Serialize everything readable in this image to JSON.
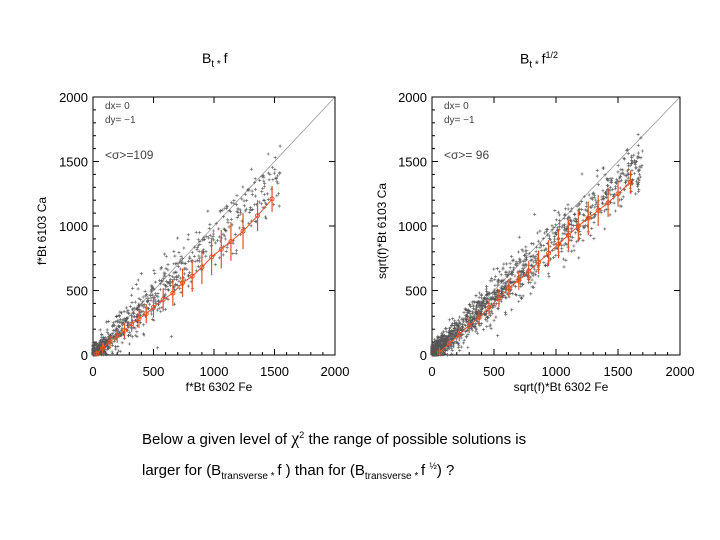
{
  "titles": {
    "left": {
      "base": "B",
      "sub": "t * ",
      "rest": "f",
      "sup": ""
    },
    "right": {
      "base": "B",
      "sub": "t * ",
      "rest": "f",
      "sup": "1/2"
    }
  },
  "caption": {
    "line1_pre": "Below a given level of ",
    "chi": "χ",
    "chi_sup": "2",
    "line1_post": " the range of possible solutions is",
    "line2_a": "larger for (B",
    "line2_sub1": "transverse * ",
    "line2_b": "f ) than for (B",
    "line2_sub2": "transverse * ",
    "line2_c": "f ",
    "line2_sup": "½",
    "line2_d": ") ?"
  },
  "colors": {
    "scatter": "#555555",
    "fit": "#e0552a",
    "axis": "#000000",
    "diag": "#999999"
  },
  "chart_data": [
    {
      "type": "scatter",
      "title": "Bt * f",
      "xlabel": "f*Bt      6302 Fe",
      "ylabel": "f*Bt      6103 Ca",
      "xlim": [
        0,
        2000
      ],
      "ylim": [
        0,
        2000
      ],
      "xticks": [
        "0",
        "500",
        "1000",
        "1500",
        "2000"
      ],
      "yticks": [
        "0",
        "500",
        "1000",
        "1500",
        "2000"
      ],
      "annotations": [
        "dx=      0",
        "dy=     −1",
        "<σ>=109"
      ],
      "diagonal": [
        [
          0,
          0
        ],
        [
          2000,
          2000
        ]
      ],
      "scatter_model": {
        "n_points": 900,
        "slope": 0.9,
        "spread": 109,
        "x_max": 1550
      },
      "binned_means": {
        "x": [
          30,
          80,
          140,
          200,
          260,
          320,
          380,
          440,
          500,
          580,
          660,
          740,
          820,
          900,
          980,
          1060,
          1140,
          1240,
          1360,
          1480
        ],
        "y": [
          10,
          55,
          100,
          150,
          190,
          240,
          280,
          320,
          370,
          430,
          480,
          560,
          610,
          680,
          760,
          820,
          880,
          960,
          1080,
          1210
        ],
        "yerr": [
          25,
          40,
          50,
          55,
          60,
          60,
          70,
          75,
          80,
          90,
          100,
          110,
          120,
          130,
          140,
          150,
          150,
          140,
          120,
          100
        ]
      }
    },
    {
      "type": "scatter",
      "title": "Bt * f^1/2",
      "xlabel": "sqrt(f)*Bt      6302 Fe",
      "ylabel": "sqrt(f)*Bt      6103 Ca",
      "xlim": [
        0,
        2000
      ],
      "ylim": [
        0,
        2000
      ],
      "xticks": [
        "0",
        "500",
        "1000",
        "1500",
        "2000"
      ],
      "yticks": [
        "0",
        "500",
        "1000",
        "1500",
        "2000"
      ],
      "annotations": [
        "dx=      0",
        "dy=     −1",
        "<σ>= 96"
      ],
      "diagonal": [
        [
          0,
          0
        ],
        [
          2000,
          2000
        ]
      ],
      "scatter_model": {
        "n_points": 1600,
        "slope": 0.88,
        "spread": 96,
        "x_max": 1700
      },
      "binned_means": {
        "x": [
          60,
          140,
          220,
          300,
          380,
          460,
          540,
          620,
          700,
          780,
          860,
          940,
          1020,
          1100,
          1180,
          1260,
          1340,
          1420,
          1500,
          1600
        ],
        "y": [
          20,
          90,
          160,
          230,
          290,
          370,
          440,
          520,
          580,
          650,
          720,
          790,
          860,
          930,
          1000,
          1060,
          1120,
          1180,
          1250,
          1340
        ],
        "yerr": [
          40,
          50,
          55,
          60,
          60,
          65,
          70,
          70,
          75,
          80,
          90,
          100,
          110,
          120,
          120,
          130,
          120,
          110,
          100,
          90
        ]
      }
    }
  ]
}
